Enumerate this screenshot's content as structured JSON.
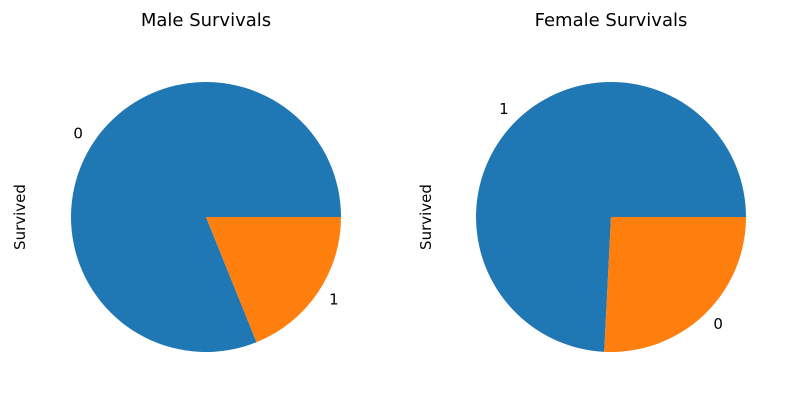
{
  "chart_data": [
    {
      "type": "pie",
      "title": "Male Survivals",
      "ylabel": "Survived",
      "slices": [
        {
          "label": "0",
          "value": 81.1,
          "color": "#1f77b4"
        },
        {
          "label": "1",
          "value": 18.9,
          "color": "#ff7f0e"
        }
      ],
      "direction": "counterclockwise",
      "start_angle_deg": 0
    },
    {
      "type": "pie",
      "title": "Female Survivals",
      "ylabel": "Survived",
      "slices": [
        {
          "label": "1",
          "value": 74.2,
          "color": "#1f77b4"
        },
        {
          "label": "0",
          "value": 25.8,
          "color": "#ff7f0e"
        }
      ],
      "direction": "counterclockwise",
      "start_angle_deg": 0
    }
  ]
}
